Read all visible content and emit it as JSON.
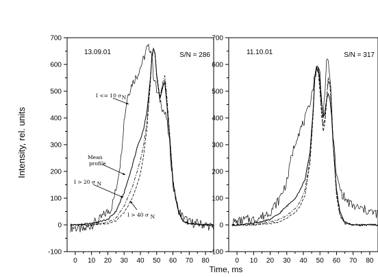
{
  "figure": {
    "ylabel": "Intensity, rel. units",
    "xlabel": "Time, ms"
  },
  "chart_data": [
    {
      "type": "line",
      "date_label": "13.09.01",
      "sn_label": "S/N = 286",
      "xlim": [
        -5,
        85
      ],
      "ylim": [
        -100,
        700
      ],
      "xticks": [
        0,
        10,
        20,
        30,
        40,
        50,
        60,
        70,
        80
      ],
      "yticks": [
        -100,
        0,
        100,
        200,
        300,
        400,
        500,
        600,
        700
      ],
      "annotations": [
        {
          "key": "i10",
          "lines": [
            "I <= 10 σ",
            "N"
          ]
        },
        {
          "key": "mean",
          "lines": [
            "Mean",
            "profile"
          ]
        },
        {
          "key": "i20",
          "lines": [
            "I > 20 σ",
            "N"
          ]
        },
        {
          "key": "i40",
          "lines": [
            "I > 40 σ",
            "N"
          ]
        }
      ],
      "series": [
        {
          "key": "low",
          "style": "thin",
          "x": [
            0,
            5,
            10,
            15,
            18,
            22,
            25,
            28,
            30,
            32,
            35,
            38,
            40,
            42,
            44,
            46,
            47,
            48,
            49,
            50,
            52,
            54,
            56,
            58,
            60,
            63,
            66,
            70,
            75,
            80,
            85
          ],
          "y": [
            -10,
            -20,
            0,
            20,
            40,
            60,
            130,
            250,
            390,
            480,
            530,
            560,
            590,
            620,
            660,
            660,
            640,
            560,
            540,
            500,
            470,
            430,
            400,
            300,
            150,
            60,
            30,
            10,
            5,
            0,
            -10
          ]
        },
        {
          "key": "mean",
          "style": "solid",
          "x": [
            0,
            10,
            20,
            25,
            30,
            35,
            38,
            40,
            42,
            44,
            46,
            47,
            48,
            49,
            50,
            52,
            54,
            55,
            56,
            58,
            60,
            63,
            66,
            70,
            80,
            85
          ],
          "y": [
            0,
            5,
            20,
            50,
            120,
            220,
            290,
            320,
            360,
            420,
            540,
            620,
            660,
            640,
            560,
            470,
            520,
            530,
            470,
            320,
            160,
            60,
            15,
            5,
            0,
            0
          ]
        },
        {
          "key": "mid",
          "style": "dashdot",
          "x": [
            0,
            10,
            20,
            25,
            30,
            35,
            38,
            40,
            42,
            44,
            46,
            47,
            48,
            49,
            50,
            52,
            54,
            55,
            56,
            58,
            60,
            63,
            66,
            70,
            80,
            85
          ],
          "y": [
            0,
            0,
            10,
            25,
            70,
            140,
            200,
            240,
            300,
            380,
            530,
            630,
            660,
            640,
            550,
            470,
            540,
            560,
            500,
            340,
            170,
            60,
            15,
            5,
            0,
            0
          ]
        },
        {
          "key": "high",
          "style": "dash",
          "x": [
            0,
            10,
            20,
            25,
            30,
            35,
            38,
            40,
            42,
            44,
            46,
            47,
            48,
            49,
            50,
            52,
            54,
            55,
            56,
            58,
            60,
            63,
            66,
            70,
            80,
            85
          ],
          "y": [
            0,
            0,
            5,
            15,
            45,
            100,
            150,
            190,
            260,
            360,
            520,
            630,
            660,
            640,
            560,
            480,
            530,
            540,
            480,
            330,
            160,
            55,
            12,
            5,
            0,
            0
          ]
        }
      ]
    },
    {
      "type": "line",
      "date_label": "11.10.01",
      "sn_label": "S/N = 317",
      "xlim": [
        -5,
        85
      ],
      "ylim": [
        -100,
        700
      ],
      "xticks": [
        0,
        10,
        20,
        30,
        40,
        50,
        60,
        70,
        80
      ],
      "yticks": [
        -100,
        0,
        100,
        200,
        300,
        400,
        500,
        600,
        700
      ],
      "annotations": [],
      "series": [
        {
          "key": "low",
          "style": "thin",
          "x": [
            0,
            5,
            10,
            15,
            20,
            25,
            30,
            33,
            36,
            40,
            43,
            46,
            48,
            50,
            51,
            52,
            53,
            54,
            55,
            56,
            57,
            58,
            60,
            63,
            66,
            70,
            75,
            80,
            85
          ],
          "y": [
            10,
            20,
            20,
            30,
            50,
            90,
            160,
            260,
            330,
            380,
            430,
            520,
            590,
            570,
            460,
            420,
            500,
            600,
            610,
            560,
            440,
            330,
            180,
            120,
            90,
            70,
            60,
            50,
            40
          ]
        },
        {
          "key": "mean",
          "style": "solid",
          "x": [
            0,
            10,
            20,
            25,
            30,
            35,
            38,
            41,
            44,
            46,
            47,
            48,
            49,
            50,
            51,
            52,
            53,
            54,
            55,
            56,
            57,
            58,
            60,
            62,
            65,
            70,
            80,
            85
          ],
          "y": [
            0,
            5,
            20,
            40,
            70,
            100,
            130,
            170,
            270,
            440,
            560,
            595,
            590,
            540,
            460,
            400,
            420,
            470,
            490,
            470,
            410,
            300,
            130,
            50,
            10,
            0,
            0,
            0
          ]
        },
        {
          "key": "mid",
          "style": "dashdot",
          "x": [
            0,
            10,
            20,
            25,
            30,
            35,
            38,
            41,
            44,
            46,
            47,
            48,
            49,
            50,
            51,
            52,
            53,
            54,
            55,
            56,
            57,
            58,
            60,
            62,
            65,
            70,
            80,
            85
          ],
          "y": [
            0,
            0,
            10,
            20,
            35,
            60,
            85,
            130,
            250,
            430,
            560,
            590,
            580,
            520,
            430,
            370,
            400,
            470,
            540,
            520,
            440,
            300,
            120,
            40,
            8,
            0,
            0,
            0
          ]
        },
        {
          "key": "high",
          "style": "dash",
          "x": [
            0,
            10,
            20,
            25,
            30,
            35,
            38,
            41,
            44,
            46,
            47,
            48,
            49,
            50,
            51,
            52,
            53,
            54,
            55,
            56,
            57,
            58,
            60,
            62,
            65,
            70,
            80,
            85
          ],
          "y": [
            0,
            0,
            5,
            10,
            25,
            45,
            70,
            110,
            230,
            420,
            560,
            585,
            570,
            500,
            410,
            350,
            380,
            460,
            550,
            530,
            440,
            300,
            110,
            35,
            5,
            0,
            0,
            0
          ]
        }
      ]
    }
  ]
}
